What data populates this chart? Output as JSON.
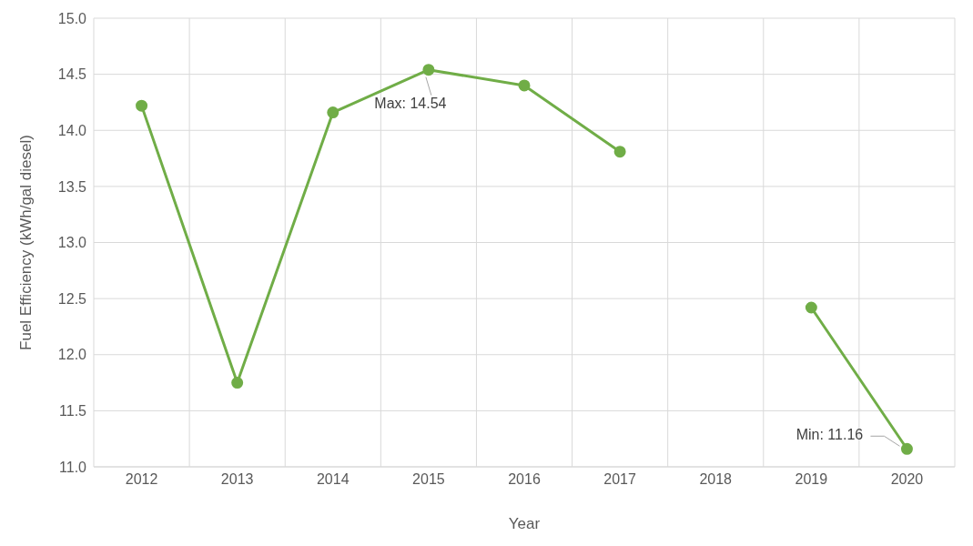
{
  "chart_data": {
    "type": "line",
    "xlabel": "Year",
    "ylabel": "Fuel Efficiency (kWh/gal diesel)",
    "categories": [
      "2012",
      "2013",
      "2014",
      "2015",
      "2016",
      "2017",
      "2018",
      "2019",
      "2020"
    ],
    "series": [
      {
        "color": "#70ad47",
        "values": [
          14.22,
          11.75,
          14.16,
          14.54,
          14.4,
          13.81,
          null,
          12.42,
          11.16
        ]
      }
    ],
    "ylim": [
      11,
      15
    ],
    "yticks": [
      {
        "value": 11,
        "label": "11.0"
      },
      {
        "value": 11.5,
        "label": "11.5"
      },
      {
        "value": 12,
        "label": "12.0"
      },
      {
        "value": 12.5,
        "label": "12.5"
      },
      {
        "value": 13,
        "label": "13.0"
      },
      {
        "value": 13.5,
        "label": "13.5"
      },
      {
        "value": 14,
        "label": "14.0"
      },
      {
        "value": 14.5,
        "label": "14.5"
      },
      {
        "value": 15,
        "label": "15.0"
      }
    ],
    "grid": true,
    "marker": "circle",
    "line_style": "solid",
    "legend": false,
    "annotations": [
      {
        "text": "Max: 14.54",
        "x": "2015",
        "y": 14.54
      },
      {
        "text": "Min: 11.16",
        "x": "2020",
        "y": 11.16
      }
    ]
  }
}
